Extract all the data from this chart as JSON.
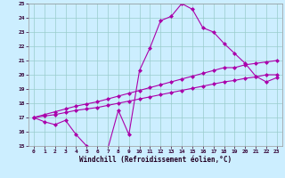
{
  "xlabel": "Windchill (Refroidissement éolien,°C)",
  "bg_color": "#cceeff",
  "grid_color": "#99cccc",
  "line_color": "#aa00aa",
  "xlim": [
    -0.5,
    23.5
  ],
  "ylim": [
    15,
    25
  ],
  "xticks": [
    0,
    1,
    2,
    3,
    4,
    5,
    6,
    7,
    8,
    9,
    10,
    11,
    12,
    13,
    14,
    15,
    16,
    17,
    18,
    19,
    20,
    21,
    22,
    23
  ],
  "yticks": [
    15,
    16,
    17,
    18,
    19,
    20,
    21,
    22,
    23,
    24,
    25
  ],
  "line1_x": [
    0,
    1,
    2,
    3,
    4,
    5,
    6,
    7,
    8,
    9,
    10,
    11,
    12,
    13,
    14,
    15,
    16,
    17,
    18,
    19,
    20,
    21,
    22,
    23
  ],
  "line1_y": [
    17.0,
    16.7,
    16.5,
    16.8,
    15.8,
    15.0,
    14.8,
    14.8,
    17.5,
    15.8,
    20.3,
    21.9,
    23.8,
    24.1,
    25.0,
    24.6,
    23.3,
    23.0,
    22.2,
    21.5,
    20.8,
    19.9,
    19.5,
    19.8
  ],
  "line2_x": [
    0,
    1,
    2,
    3,
    4,
    5,
    6,
    7,
    8,
    9,
    10,
    11,
    12,
    13,
    14,
    15,
    16,
    17,
    18,
    19,
    20,
    21,
    22,
    23
  ],
  "line2_y": [
    17.0,
    17.1,
    17.2,
    17.35,
    17.5,
    17.6,
    17.7,
    17.85,
    18.0,
    18.15,
    18.3,
    18.45,
    18.6,
    18.75,
    18.9,
    19.05,
    19.2,
    19.35,
    19.5,
    19.6,
    19.75,
    19.85,
    20.0,
    20.0
  ],
  "line3_x": [
    0,
    1,
    2,
    3,
    4,
    5,
    6,
    7,
    8,
    9,
    10,
    11,
    12,
    13,
    14,
    15,
    16,
    17,
    18,
    19,
    20,
    21,
    22,
    23
  ],
  "line3_y": [
    17.0,
    17.2,
    17.4,
    17.6,
    17.8,
    17.95,
    18.1,
    18.3,
    18.5,
    18.7,
    18.9,
    19.1,
    19.3,
    19.5,
    19.7,
    19.9,
    20.1,
    20.3,
    20.5,
    20.5,
    20.7,
    20.8,
    20.9,
    21.0
  ],
  "marker": "D",
  "markersize": 2,
  "linewidth": 0.8
}
